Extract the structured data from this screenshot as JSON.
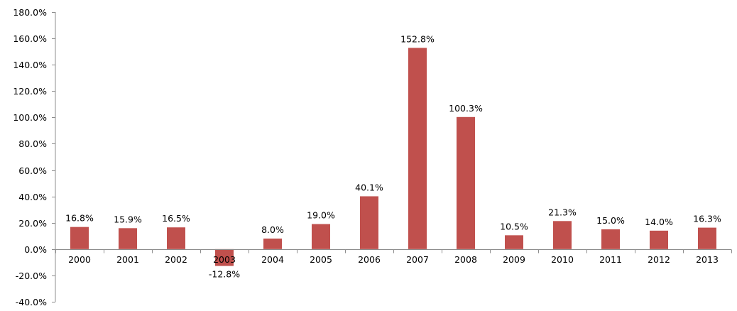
{
  "chart_data": {
    "type": "bar",
    "title": "",
    "xlabel": "",
    "ylabel": "",
    "categories": [
      "2000",
      "2001",
      "2002",
      "2003",
      "2004",
      "2005",
      "2006",
      "2007",
      "2008",
      "2009",
      "2010",
      "2011",
      "2012",
      "2013"
    ],
    "values": [
      16.8,
      15.9,
      16.5,
      -12.8,
      8.0,
      19.0,
      40.1,
      152.8,
      100.3,
      10.5,
      21.3,
      15.0,
      14.0,
      16.3
    ],
    "data_labels": [
      "16.8%",
      "15.9%",
      "16.5%",
      "-12.8%",
      "8.0%",
      "19.0%",
      "40.1%",
      "152.8%",
      "100.3%",
      "10.5%",
      "21.3%",
      "15.0%",
      "14.0%",
      "16.3%"
    ],
    "ylim": [
      -40,
      180
    ],
    "y_ticks": [
      -40,
      -20,
      0,
      20,
      40,
      60,
      80,
      100,
      120,
      140,
      160,
      180
    ],
    "y_tick_labels": [
      "-40.0%",
      "-20.0%",
      "0.0%",
      "20.0%",
      "40.0%",
      "60.0%",
      "80.0%",
      "100.0%",
      "120.0%",
      "140.0%",
      "160.0%",
      "180.0%"
    ],
    "grid": false,
    "legend": "none",
    "bar_color": "#c0504d",
    "axis_color": "#8c8c8c"
  }
}
